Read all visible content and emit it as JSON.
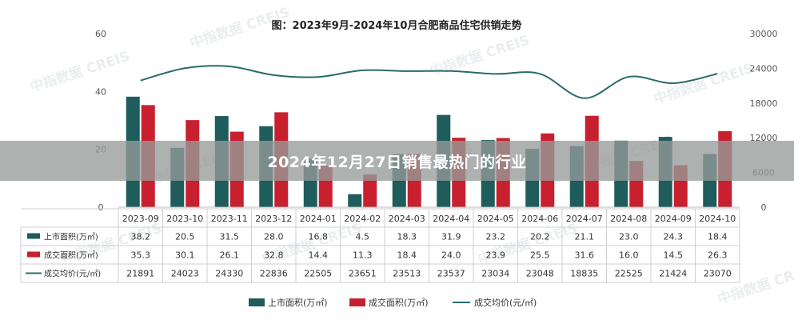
{
  "chart_data": {
    "type": "bar",
    "title": "图：2023年9月-2024年10月合肥商品住宅供销走势",
    "categories": [
      "2023-09",
      "2023-10",
      "2023-11",
      "2023-12",
      "2024-01",
      "2024-02",
      "2024-03",
      "2024-04",
      "2024-05",
      "2024-06",
      "2024-07",
      "2024-08",
      "2024-09",
      "2024-10"
    ],
    "series": [
      {
        "name": "上市面积(万㎡)",
        "type": "bar",
        "axis": "left",
        "color": "#1f5c5c",
        "values": [
          38.2,
          20.5,
          31.5,
          28.0,
          16.8,
          4.5,
          18.3,
          31.9,
          23.2,
          20.2,
          21.1,
          23.0,
          24.3,
          18.4
        ]
      },
      {
        "name": "成交面积(万㎡)",
        "type": "bar",
        "axis": "left",
        "color": "#c8202f",
        "values": [
          35.3,
          30.1,
          26.1,
          32.8,
          14.4,
          11.3,
          18.4,
          24.0,
          23.9,
          25.5,
          31.6,
          16.0,
          14.5,
          26.3
        ]
      },
      {
        "name": "成交均价(元/㎡)",
        "type": "line",
        "axis": "right",
        "color": "#2a6b6b",
        "values": [
          21891,
          24023,
          24330,
          22836,
          22505,
          23651,
          23513,
          23537,
          23034,
          23048,
          18835,
          22525,
          21424,
          23070
        ]
      }
    ],
    "y_left": {
      "min": 0,
      "max": 60,
      "ticks": [
        0,
        20,
        40,
        60
      ]
    },
    "y_right": {
      "min": 0,
      "max": 30000,
      "ticks": [
        0,
        6000,
        12000,
        18000,
        24000,
        30000
      ]
    },
    "table": {
      "rows": [
        {
          "label": "上市面积(万㎡)",
          "cells": [
            "38.2",
            "20.5",
            "31.5",
            "28.0",
            "16.8",
            "4.5",
            "18.3",
            "31.9",
            "23.2",
            "20.2",
            "21.1",
            "23.0",
            "24.3",
            "18.4"
          ]
        },
        {
          "label": "成交面积(万㎡)",
          "cells": [
            "35.3",
            "30.1",
            "26.1",
            "32.8",
            "14.4",
            "11.3",
            "18.4",
            "24.0",
            "23.9",
            "25.5",
            "31.6",
            "16.0",
            "14.5",
            "26.3"
          ]
        },
        {
          "label": "成交均价(元/㎡)",
          "cells": [
            "21891",
            "24023",
            "24330",
            "22836",
            "22505",
            "23651",
            "23513",
            "23537",
            "23034",
            "23048",
            "18835",
            "22525",
            "21424",
            "23070"
          ]
        }
      ]
    },
    "legend": {
      "placement": "bottom",
      "items": [
        "上市面积(万㎡)",
        "成交面积(万㎡)",
        "成交均价(元/㎡)"
      ]
    },
    "watermark": "中指数据 CREIS"
  },
  "banner": {
    "text": "2024年12月27日销售最热门的行业"
  }
}
